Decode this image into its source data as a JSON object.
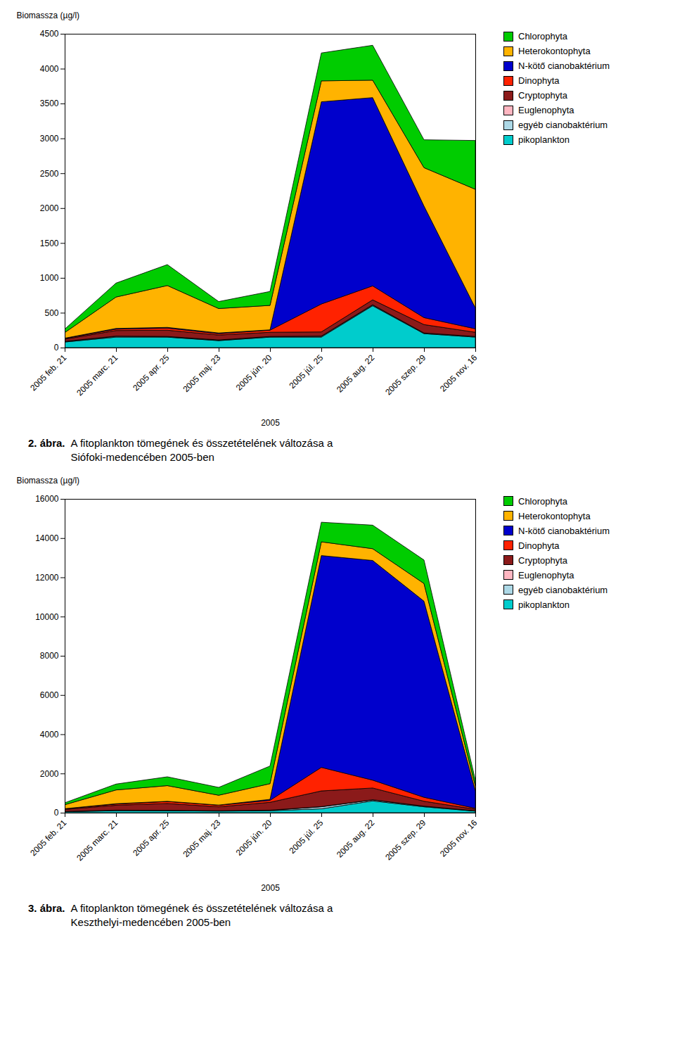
{
  "chart_data": [
    {
      "type": "area",
      "stacked": true,
      "legend": "right",
      "title": "2. ábra.",
      "subtitle": "A fitoplankton tömegének és összetételének változása a\nSiófoki-medencében 2005-ben",
      "x_label": "2005",
      "y_label": "Biomassza (µg/l)",
      "categories": [
        "2005 feb. 21",
        "2005 marc. 21",
        "2005 apr. 25",
        "2005 maj. 23",
        "2005 jún. 20",
        "2005 júl. 25",
        "2005 aug. 22",
        "2005 szep. 29",
        "2005 nov. 16"
      ],
      "ylim": [
        0,
        4500
      ],
      "yticks": [
        0,
        500,
        1000,
        1500,
        2000,
        2500,
        3000,
        3500,
        4000,
        4500
      ],
      "series": [
        {
          "name": "pikoplankton",
          "color": "#00CCCC",
          "values": [
            80,
            150,
            150,
            100,
            150,
            150,
            600,
            200,
            150
          ]
        },
        {
          "name": "egyéb cianobaktérium",
          "color": "#ADD8E6",
          "values": [
            5,
            10,
            5,
            5,
            5,
            10,
            10,
            5,
            5
          ]
        },
        {
          "name": "Euglenophyta",
          "color": "#FFB6C1",
          "values": [
            5,
            5,
            5,
            5,
            5,
            5,
            5,
            5,
            5
          ]
        },
        {
          "name": "Cryptophyta",
          "color": "#8B1A1A",
          "values": [
            30,
            80,
            90,
            70,
            60,
            60,
            70,
            120,
            60
          ]
        },
        {
          "name": "Dinophyta",
          "color": "#FF2200",
          "values": [
            10,
            20,
            30,
            20,
            30,
            400,
            200,
            100,
            50
          ]
        },
        {
          "name": "N-kötő cianobaktérium",
          "color": "#0000CC",
          "values": [
            5,
            10,
            10,
            10,
            5,
            2900,
            2700,
            1600,
            300
          ]
        },
        {
          "name": "Heterokontophyta",
          "color": "#FFB300",
          "values": [
            80,
            450,
            600,
            350,
            350,
            300,
            250,
            550,
            1700
          ]
        },
        {
          "name": "Chlorophyta",
          "color": "#00CC00",
          "values": [
            50,
            200,
            300,
            100,
            200,
            400,
            500,
            400,
            700
          ]
        }
      ]
    },
    {
      "type": "area",
      "stacked": true,
      "legend": "right",
      "title": "3. ábra.",
      "subtitle": "A fitoplankton tömegének és összetételének változása a\nKeszthelyi-medencében 2005-ben",
      "x_label": "2005",
      "y_label": "Biomassza (µg/l)",
      "categories": [
        "2005 feb. 21",
        "2005 marc. 21",
        "2005 apr. 25",
        "2005 maj. 23",
        "2005 jún. 20",
        "2005 júl. 25",
        "2005 aug. 22",
        "2005 szep. 29",
        "2005 nov. 16"
      ],
      "ylim": [
        0,
        16000
      ],
      "yticks": [
        0,
        2000,
        4000,
        6000,
        8000,
        10000,
        12000,
        14000,
        16000
      ],
      "series": [
        {
          "name": "pikoplankton",
          "color": "#00CCCC",
          "values": [
            50,
            100,
            100,
            80,
            100,
            200,
            600,
            300,
            80
          ]
        },
        {
          "name": "egyéb cianobaktérium",
          "color": "#ADD8E6",
          "values": [
            10,
            20,
            10,
            10,
            20,
            100,
            50,
            30,
            10
          ]
        },
        {
          "name": "Euglenophyta",
          "color": "#FFB6C1",
          "values": [
            5,
            10,
            10,
            10,
            10,
            10,
            10,
            5,
            5
          ]
        },
        {
          "name": "Cryptophyta",
          "color": "#8B1A1A",
          "values": [
            100,
            250,
            350,
            200,
            400,
            800,
            600,
            250,
            80
          ]
        },
        {
          "name": "Dinophyta",
          "color": "#FF2200",
          "values": [
            30,
            60,
            100,
            80,
            100,
            1200,
            400,
            200,
            50
          ]
        },
        {
          "name": "N-kötő cianobaktérium",
          "color": "#0000CC",
          "values": [
            10,
            20,
            10,
            10,
            50,
            10800,
            11200,
            10000,
            900
          ]
        },
        {
          "name": "Heterokontophyta",
          "color": "#FFB300",
          "values": [
            200,
            700,
            800,
            500,
            800,
            700,
            600,
            900,
            250
          ]
        },
        {
          "name": "Chlorophyta",
          "color": "#00CC00",
          "values": [
            100,
            300,
            450,
            400,
            900,
            1000,
            1200,
            1200,
            300
          ]
        }
      ]
    }
  ]
}
